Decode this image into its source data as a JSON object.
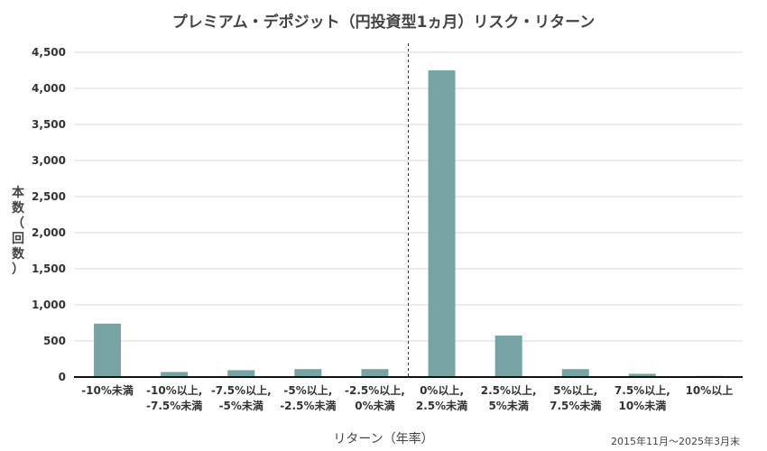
{
  "chart_data": {
    "type": "bar",
    "title": "プレミアム・デポジット（円投資型1ヵ月）リスク・リターン",
    "ylabel": "本数（回数）",
    "xlabel": "リターン（年率）",
    "note": "2015年11月〜2025年3月末",
    "categories": [
      [
        "-10%未満"
      ],
      [
        "-10%以上,",
        "-7.5%未満"
      ],
      [
        "-7.5%以上,",
        "-5%未満"
      ],
      [
        "-5%以上,",
        "-2.5%未満"
      ],
      [
        "-2.5%以上,",
        "0%未満"
      ],
      [
        "0%以上,",
        "2.5%未満"
      ],
      [
        "2.5%以上,",
        "5%未満"
      ],
      [
        "5%以上,",
        "7.5%未満"
      ],
      [
        "7.5%以上,",
        "10%未満"
      ],
      [
        "10%以上"
      ]
    ],
    "values": [
      740,
      70,
      95,
      110,
      110,
      4250,
      575,
      110,
      45,
      15
    ],
    "ylim": [
      0,
      4500
    ],
    "yticks": [
      0,
      500,
      1000,
      1500,
      2000,
      2500,
      3000,
      3500,
      4000,
      4500
    ],
    "ytick_labels": [
      "0",
      "500",
      "1,000",
      "1,500",
      "2,000",
      "2,500",
      "3,000",
      "3,500",
      "4,000",
      "4,500"
    ],
    "bar_color": "#77A3A5",
    "grid": true,
    "zero_divider_after_category": 4
  }
}
